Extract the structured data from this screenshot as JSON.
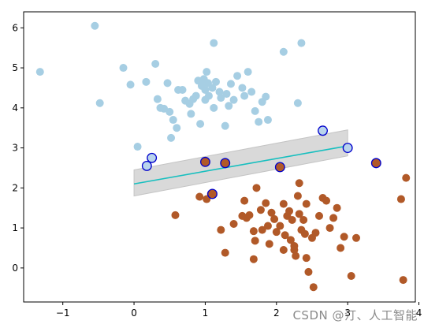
{
  "chart_data": {
    "type": "scatter",
    "title": "",
    "xlabel": "",
    "ylabel": "",
    "xlim": [
      -1.55,
      3.95
    ],
    "ylim": [
      -0.85,
      6.4
    ],
    "x_ticks": [
      -1,
      0,
      1,
      2,
      3,
      4
    ],
    "y_ticks": [
      0,
      1,
      2,
      3,
      4,
      5,
      6
    ],
    "grid": false,
    "legend": "none",
    "colors": {
      "class_a": "#a6cee3",
      "class_b": "#b15928",
      "support_vector_edge": "#0000cc",
      "support_vector_fill": "#b9d4ec",
      "decision_line": "#17bfbf",
      "margin_band": "#d9d9d9"
    },
    "class_a_points": [
      [
        -0.55,
        6.05
      ],
      [
        -1.32,
        4.9
      ],
      [
        -0.48,
        4.12
      ],
      [
        -0.15,
        5.0
      ],
      [
        -0.05,
        4.58
      ],
      [
        0.05,
        3.03
      ],
      [
        0.17,
        4.65
      ],
      [
        0.3,
        5.1
      ],
      [
        0.33,
        4.22
      ],
      [
        0.37,
        4.0
      ],
      [
        0.42,
        3.98
      ],
      [
        0.47,
        4.62
      ],
      [
        0.5,
        3.9
      ],
      [
        0.52,
        3.25
      ],
      [
        0.55,
        3.7
      ],
      [
        0.6,
        3.5
      ],
      [
        0.62,
        4.45
      ],
      [
        0.68,
        4.45
      ],
      [
        0.72,
        4.18
      ],
      [
        0.78,
        4.1
      ],
      [
        0.8,
        3.85
      ],
      [
        0.83,
        4.22
      ],
      [
        0.87,
        4.3
      ],
      [
        0.9,
        4.68
      ],
      [
        0.93,
        3.6
      ],
      [
        0.95,
        4.55
      ],
      [
        0.98,
        4.72
      ],
      [
        1.0,
        4.45
      ],
      [
        1.0,
        4.2
      ],
      [
        1.02,
        4.9
      ],
      [
        1.04,
        4.62
      ],
      [
        1.05,
        4.3
      ],
      [
        1.1,
        4.5
      ],
      [
        1.12,
        4.0
      ],
      [
        1.15,
        4.65
      ],
      [
        1.12,
        5.62
      ],
      [
        1.2,
        4.4
      ],
      [
        1.22,
        4.25
      ],
      [
        1.28,
        3.55
      ],
      [
        1.3,
        4.35
      ],
      [
        1.33,
        4.05
      ],
      [
        1.36,
        4.6
      ],
      [
        1.4,
        4.2
      ],
      [
        1.45,
        4.8
      ],
      [
        1.52,
        4.5
      ],
      [
        1.55,
        4.3
      ],
      [
        1.6,
        4.9
      ],
      [
        1.65,
        4.4
      ],
      [
        1.7,
        3.92
      ],
      [
        1.75,
        3.65
      ],
      [
        1.8,
        4.15
      ],
      [
        1.85,
        4.28
      ],
      [
        1.88,
        3.7
      ],
      [
        2.1,
        5.4
      ],
      [
        2.3,
        4.12
      ],
      [
        2.35,
        5.62
      ]
    ],
    "class_b_points": [
      [
        0.58,
        1.32
      ],
      [
        0.92,
        1.78
      ],
      [
        1.02,
        1.72
      ],
      [
        1.08,
        1.85
      ],
      [
        1.22,
        0.95
      ],
      [
        1.28,
        0.38
      ],
      [
        1.4,
        1.1
      ],
      [
        1.52,
        1.3
      ],
      [
        1.55,
        1.68
      ],
      [
        1.58,
        1.25
      ],
      [
        1.62,
        1.32
      ],
      [
        1.68,
        0.92
      ],
      [
        1.7,
        0.68
      ],
      [
        1.72,
        2.0
      ],
      [
        1.78,
        1.45
      ],
      [
        1.8,
        0.95
      ],
      [
        1.85,
        1.62
      ],
      [
        1.88,
        1.05
      ],
      [
        1.9,
        0.6
      ],
      [
        1.93,
        1.38
      ],
      [
        1.97,
        1.22
      ],
      [
        2.0,
        0.9
      ],
      [
        2.05,
        1.05
      ],
      [
        2.1,
        1.6
      ],
      [
        2.12,
        0.82
      ],
      [
        2.15,
        1.3
      ],
      [
        2.18,
        1.42
      ],
      [
        2.2,
        0.7
      ],
      [
        2.22,
        1.2
      ],
      [
        2.25,
        0.45
      ],
      [
        2.25,
        0.55
      ],
      [
        2.27,
        0.3
      ],
      [
        2.3,
        1.8
      ],
      [
        2.32,
        1.35
      ],
      [
        2.35,
        0.95
      ],
      [
        2.38,
        1.2
      ],
      [
        2.4,
        0.85
      ],
      [
        2.42,
        0.25
      ],
      [
        2.42,
        1.6
      ],
      [
        2.45,
        -0.1
      ],
      [
        2.5,
        0.75
      ],
      [
        2.52,
        -0.48
      ],
      [
        2.55,
        0.88
      ],
      [
        2.6,
        1.3
      ],
      [
        2.65,
        1.75
      ],
      [
        2.7,
        1.68
      ],
      [
        2.75,
        1.0
      ],
      [
        2.8,
        1.25
      ],
      [
        2.85,
        1.5
      ],
      [
        2.9,
        0.5
      ],
      [
        2.95,
        0.78
      ],
      [
        3.05,
        -0.2
      ],
      [
        3.12,
        0.75
      ],
      [
        3.75,
        1.72
      ],
      [
        3.78,
        -0.3
      ],
      [
        3.82,
        2.25
      ],
      [
        1.68,
        0.22
      ],
      [
        2.32,
        2.12
      ],
      [
        2.1,
        0.45
      ]
    ],
    "support_vectors_class_a": [
      [
        0.18,
        2.55
      ],
      [
        0.25,
        2.75
      ],
      [
        2.65,
        3.43
      ],
      [
        3.0,
        3.0
      ]
    ],
    "support_vectors_class_b": [
      [
        1.0,
        2.65
      ],
      [
        1.1,
        1.85
      ],
      [
        1.28,
        2.62
      ],
      [
        2.05,
        2.52
      ],
      [
        3.4,
        2.62
      ]
    ],
    "decision_line": [
      [
        0.0,
        2.1
      ],
      [
        3.0,
        3.05
      ]
    ],
    "margin_upper": [
      [
        0.0,
        2.45
      ],
      [
        3.0,
        3.45
      ]
    ],
    "margin_lower": [
      [
        0.0,
        1.8
      ],
      [
        3.0,
        2.8
      ]
    ]
  },
  "watermark": "CSDN @汀、人工智能"
}
